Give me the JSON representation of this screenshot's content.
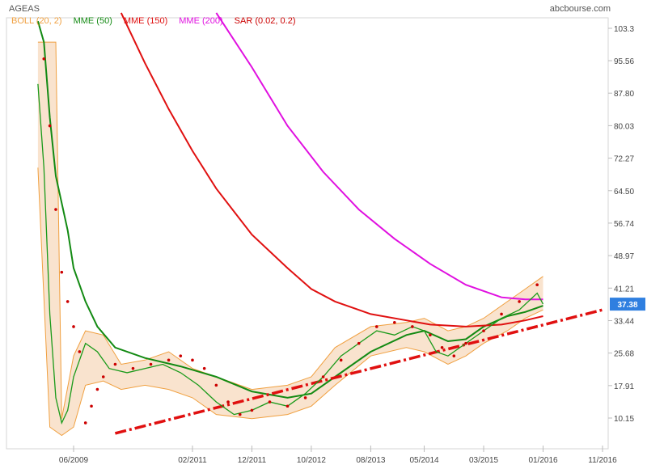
{
  "header": {
    "symbol": "AGEAS",
    "source": "abcbourse.com"
  },
  "legend": [
    {
      "label": "BOLL (20, 2)",
      "color": "#f0a040"
    },
    {
      "label": "MME (50)",
      "color": "#138a13"
    },
    {
      "label": "MME (150)",
      "color": "#e01010"
    },
    {
      "label": "MME (200)",
      "color": "#e010e0"
    },
    {
      "label": "SAR (0.02, 0.2)",
      "color": "#cc0000"
    }
  ],
  "chart_data": {
    "type": "line",
    "title": "AGEAS",
    "x_ticks": [
      "06/2009",
      "02/2011",
      "12/2011",
      "10/2012",
      "08/2013",
      "05/2014",
      "03/2015",
      "01/2016",
      "11/2016"
    ],
    "y_ticks": [
      10.15,
      17.91,
      25.68,
      33.44,
      41.21,
      48.97,
      56.74,
      64.5,
      72.27,
      80.03,
      87.8,
      95.56,
      103.3
    ],
    "ylim": [
      5,
      107
    ],
    "last_price": {
      "value": 37.38,
      "label": "37.38",
      "color": "#2f7fe0"
    },
    "series": [
      {
        "name": "MME (50)",
        "color": "#138a13",
        "points": [
          [
            "12/2008",
            105
          ],
          [
            "01/2009",
            100
          ],
          [
            "02/2009",
            82
          ],
          [
            "03/2009",
            68
          ],
          [
            "05/2009",
            55
          ],
          [
            "06/2009",
            46
          ],
          [
            "08/2009",
            38
          ],
          [
            "10/2009",
            32
          ],
          [
            "01/2010",
            27
          ],
          [
            "06/2010",
            24.5
          ],
          [
            "12/2010",
            22.5
          ],
          [
            "06/2011",
            20
          ],
          [
            "12/2011",
            16.5
          ],
          [
            "06/2012",
            15
          ],
          [
            "10/2012",
            16
          ],
          [
            "02/2013",
            20
          ],
          [
            "08/2013",
            26
          ],
          [
            "02/2014",
            30
          ],
          [
            "05/2014",
            31
          ],
          [
            "09/2014",
            28.5
          ],
          [
            "12/2014",
            29
          ],
          [
            "03/2015",
            32
          ],
          [
            "07/2015",
            34.5
          ],
          [
            "10/2015",
            35.5
          ],
          [
            "01/2016",
            37
          ]
        ]
      },
      {
        "name": "MME (150)",
        "color": "#e01010",
        "points": [
          [
            "02/2010",
            107
          ],
          [
            "06/2010",
            95
          ],
          [
            "10/2010",
            84
          ],
          [
            "02/2011",
            74
          ],
          [
            "06/2011",
            65
          ],
          [
            "12/2011",
            54
          ],
          [
            "06/2012",
            46
          ],
          [
            "10/2012",
            41
          ],
          [
            "02/2013",
            38
          ],
          [
            "08/2013",
            35
          ],
          [
            "02/2014",
            33.5
          ],
          [
            "06/2014",
            32.5
          ],
          [
            "12/2014",
            32
          ],
          [
            "06/2015",
            32.5
          ],
          [
            "10/2015",
            33.5
          ],
          [
            "01/2016",
            34.5
          ]
        ]
      },
      {
        "name": "MME (200)",
        "color": "#e010e0",
        "points": [
          [
            "06/2011",
            107
          ],
          [
            "12/2011",
            94
          ],
          [
            "06/2012",
            80
          ],
          [
            "12/2012",
            69
          ],
          [
            "06/2013",
            60
          ],
          [
            "12/2013",
            53
          ],
          [
            "06/2014",
            47
          ],
          [
            "12/2014",
            42
          ],
          [
            "06/2015",
            39
          ],
          [
            "10/2015",
            38.5
          ],
          [
            "01/2016",
            38.5
          ]
        ]
      },
      {
        "name": "Trend line",
        "color": "#e01010",
        "points": [
          [
            "01/2010",
            6.5
          ],
          [
            "11/2016",
            36
          ]
        ]
      }
    ],
    "boll_band": {
      "name": "BOLL (20, 2)",
      "upper": [
        [
          "12/2008",
          100
        ],
        [
          "03/2009",
          100
        ],
        [
          "04/2009",
          10
        ],
        [
          "06/2009",
          25
        ],
        [
          "08/2009",
          31
        ],
        [
          "11/2009",
          30
        ],
        [
          "02/2010",
          23
        ],
        [
          "06/2010",
          24
        ],
        [
          "10/2010",
          26
        ],
        [
          "02/2011",
          22
        ],
        [
          "06/2011",
          20
        ],
        [
          "12/2011",
          17
        ],
        [
          "06/2012",
          18
        ],
        [
          "10/2012",
          20
        ],
        [
          "02/2013",
          27
        ],
        [
          "08/2013",
          32
        ],
        [
          "02/2014",
          33
        ],
        [
          "05/2014",
          34
        ],
        [
          "09/2014",
          31
        ],
        [
          "12/2014",
          32
        ],
        [
          "03/2015",
          34
        ],
        [
          "07/2015",
          38
        ],
        [
          "10/2015",
          41
        ],
        [
          "01/2016",
          44
        ]
      ],
      "lower": [
        [
          "12/2008",
          70
        ],
        [
          "02/2009",
          8
        ],
        [
          "04/2009",
          6
        ],
        [
          "06/2009",
          8
        ],
        [
          "08/2009",
          18
        ],
        [
          "11/2009",
          19
        ],
        [
          "02/2010",
          17
        ],
        [
          "06/2010",
          18
        ],
        [
          "10/2010",
          17
        ],
        [
          "02/2011",
          15
        ],
        [
          "06/2011",
          11
        ],
        [
          "12/2011",
          10
        ],
        [
          "06/2012",
          11
        ],
        [
          "10/2012",
          13
        ],
        [
          "02/2013",
          18
        ],
        [
          "08/2013",
          25
        ],
        [
          "02/2014",
          27
        ],
        [
          "05/2014",
          26
        ],
        [
          "09/2014",
          23
        ],
        [
          "12/2014",
          25
        ],
        [
          "03/2015",
          28
        ],
        [
          "07/2015",
          31
        ],
        [
          "10/2015",
          34
        ],
        [
          "01/2016",
          36
        ]
      ]
    },
    "price_line": {
      "name": "Price",
      "color": "#1a9a1a",
      "points": [
        [
          "12/2008",
          90
        ],
        [
          "01/2009",
          70
        ],
        [
          "02/2009",
          35
        ],
        [
          "03/2009",
          15
        ],
        [
          "04/2009",
          9
        ],
        [
          "05/2009",
          12
        ],
        [
          "06/2009",
          20
        ],
        [
          "08/2009",
          28
        ],
        [
          "10/2009",
          26
        ],
        [
          "12/2009",
          22
        ],
        [
          "03/2010",
          21
        ],
        [
          "06/2010",
          22
        ],
        [
          "09/2010",
          23
        ],
        [
          "12/2010",
          21
        ],
        [
          "03/2011",
          18
        ],
        [
          "06/2011",
          14
        ],
        [
          "09/2011",
          11
        ],
        [
          "12/2011",
          12
        ],
        [
          "03/2012",
          14
        ],
        [
          "06/2012",
          13
        ],
        [
          "09/2012",
          16
        ],
        [
          "12/2012",
          20
        ],
        [
          "03/2013",
          25
        ],
        [
          "06/2013",
          28
        ],
        [
          "09/2013",
          31
        ],
        [
          "12/2013",
          30
        ],
        [
          "03/2014",
          32
        ],
        [
          "05/2014",
          31
        ],
        [
          "07/2014",
          26
        ],
        [
          "09/2014",
          25
        ],
        [
          "12/2014",
          28
        ],
        [
          "03/2015",
          31
        ],
        [
          "06/2015",
          34
        ],
        [
          "09/2015",
          36
        ],
        [
          "12/2015",
          40
        ],
        [
          "01/2016",
          37.38
        ]
      ]
    },
    "sar": {
      "name": "SAR (0.02, 0.2)",
      "color": "#cc0000",
      "points": [
        [
          "01/2009",
          96
        ],
        [
          "02/2009",
          80
        ],
        [
          "03/2009",
          60
        ],
        [
          "04/2009",
          45
        ],
        [
          "05/2009",
          38
        ],
        [
          "06/2009",
          32
        ],
        [
          "07/2009",
          26
        ],
        [
          "08/2009",
          9
        ],
        [
          "09/2009",
          13
        ],
        [
          "10/2009",
          17
        ],
        [
          "11/2009",
          20
        ],
        [
          "01/2010",
          23
        ],
        [
          "04/2010",
          22
        ],
        [
          "07/2010",
          23
        ],
        [
          "10/2010",
          24
        ],
        [
          "12/2010",
          25
        ],
        [
          "02/2011",
          24
        ],
        [
          "04/2011",
          22
        ],
        [
          "06/2011",
          18
        ],
        [
          "08/2011",
          14
        ],
        [
          "10/2011",
          11
        ],
        [
          "12/2011",
          12
        ],
        [
          "03/2012",
          14
        ],
        [
          "06/2012",
          13
        ],
        [
          "09/2012",
          15
        ],
        [
          "12/2012",
          20
        ],
        [
          "03/2013",
          24
        ],
        [
          "06/2013",
          28
        ],
        [
          "09/2013",
          32
        ],
        [
          "12/2013",
          33
        ],
        [
          "03/2014",
          32
        ],
        [
          "06/2014",
          30
        ],
        [
          "08/2014",
          27
        ],
        [
          "10/2014",
          25
        ],
        [
          "12/2014",
          28
        ],
        [
          "03/2015",
          31
        ],
        [
          "06/2015",
          35
        ],
        [
          "09/2015",
          38
        ],
        [
          "12/2015",
          42
        ]
      ]
    }
  }
}
